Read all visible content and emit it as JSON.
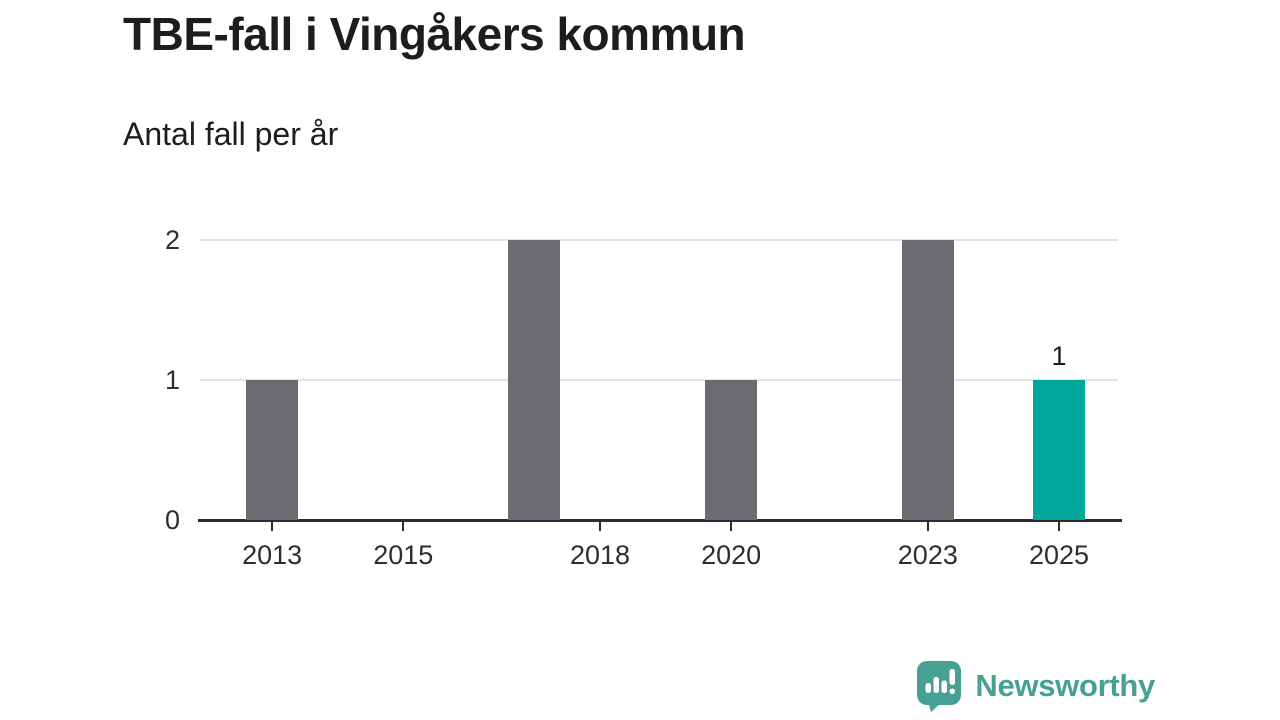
{
  "header": {
    "title": "TBE-fall i Vingåkers kommun",
    "subtitle": "Antal fall per år"
  },
  "chart_data": {
    "type": "bar",
    "title": "TBE-fall i Vingåkers kommun",
    "subtitle": "Antal fall per år",
    "xlabel": "",
    "ylabel": "",
    "x": [
      2013,
      2017,
      2020,
      2023,
      2025
    ],
    "values": [
      1,
      2,
      1,
      2,
      1
    ],
    "highlight_x": 2025,
    "annotations": [
      {
        "x": 2025,
        "text": "1"
      }
    ],
    "xticks": [
      2013,
      2015,
      2018,
      2020,
      2023,
      2025
    ],
    "yticks": [
      0,
      1,
      2
    ],
    "xlim": [
      2011.9,
      2025.9
    ],
    "ylim": [
      0,
      2
    ],
    "grid": true,
    "legend_position": "none",
    "bar_color": "#6C6B71",
    "highlight_color": "#00A69A",
    "grid_color": "#E4E4E4",
    "axis_color": "#2D2D2D"
  },
  "footer": {
    "brand": "Newsworthy",
    "brand_color": "#46A094",
    "logo_icon": "speech-bubble-bar-chart-exclamation"
  }
}
